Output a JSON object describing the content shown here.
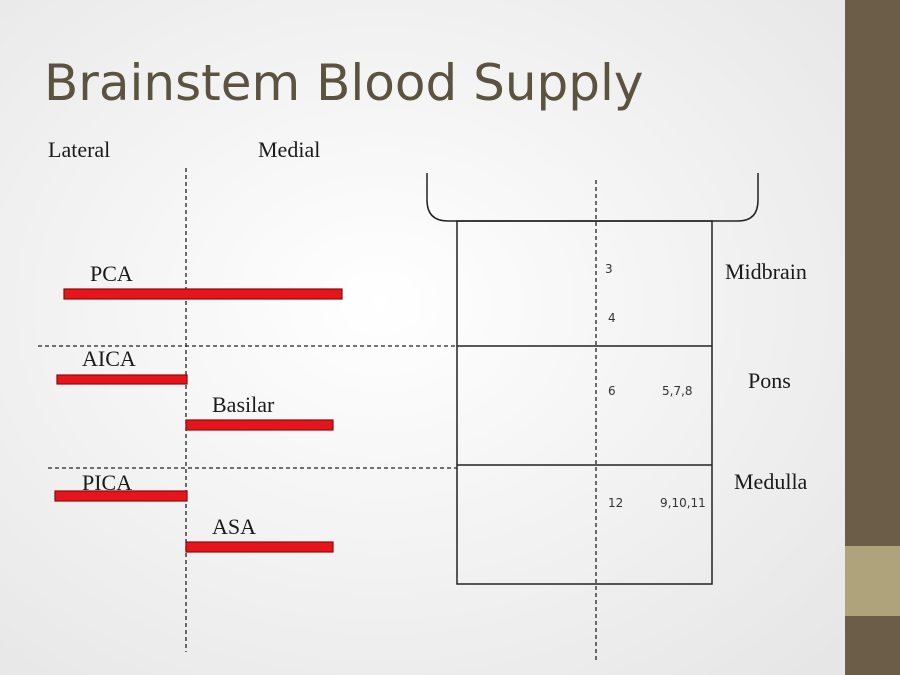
{
  "header": {
    "title": "Brainstem Blood Supply"
  },
  "columns": [
    "Lateral",
    "Medial"
  ],
  "arteries": [
    {
      "label": "PCA"
    },
    {
      "label": "AICA"
    },
    {
      "label": "Basilar"
    },
    {
      "label": "PICA"
    },
    {
      "label": "ASA"
    }
  ],
  "regions": [
    {
      "name": "Midbrain",
      "nuclei": [
        "3",
        "4"
      ]
    },
    {
      "name": "Pons",
      "nuclei": [
        "6",
        "5,7,8"
      ]
    },
    {
      "name": "Medulla",
      "nuclei": [
        "12",
        "9,10,11"
      ]
    }
  ]
}
